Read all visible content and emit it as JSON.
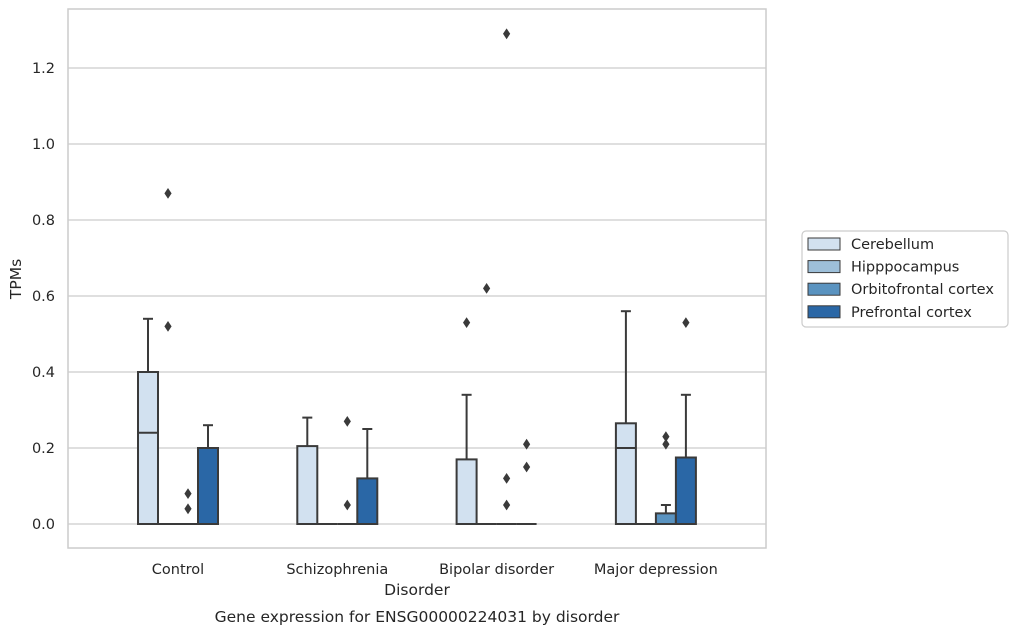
{
  "chart_data": {
    "type": "box",
    "xlabel": "Disorder",
    "ylabel": "TPMs",
    "caption": "Gene expression for ENSG00000224031 by disorder",
    "ylim": [
      -0.065,
      1.36
    ],
    "yticks": [
      0.0,
      0.2,
      0.4,
      0.6,
      0.8,
      1.0,
      1.2
    ],
    "ytick_labels": [
      "0.0",
      "0.2",
      "0.4",
      "0.6",
      "0.8",
      "1.0",
      "1.2"
    ],
    "categories": [
      "Control",
      "Schizophrenia",
      "Bipolar disorder",
      "Major depression"
    ],
    "grid": true,
    "legend_position": "right",
    "series": [
      {
        "name": "Cerebellum",
        "color": "#d2e1f0",
        "boxes": [
          {
            "q1": 0.0,
            "median": 0.24,
            "q3": 0.4,
            "whisker_low": 0.0,
            "whisker_high": 0.54,
            "outliers": []
          },
          {
            "q1": 0.0,
            "median": 0.0,
            "q3": 0.205,
            "whisker_low": 0.0,
            "whisker_high": 0.28,
            "outliers": []
          },
          {
            "q1": 0.0,
            "median": 0.0,
            "q3": 0.17,
            "whisker_low": 0.0,
            "whisker_high": 0.34,
            "outliers": [
              0.53
            ]
          },
          {
            "q1": 0.0,
            "median": 0.2,
            "q3": 0.265,
            "whisker_low": 0.0,
            "whisker_high": 0.56,
            "outliers": []
          }
        ]
      },
      {
        "name": "Hipppocampus",
        "color": "#9dbfd9",
        "boxes": [
          {
            "q1": 0.0,
            "median": 0.0,
            "q3": 0.0,
            "whisker_low": 0.0,
            "whisker_high": 0.0,
            "outliers": [
              0.52,
              0.87
            ]
          },
          {
            "q1": 0.0,
            "median": 0.0,
            "q3": 0.0,
            "whisker_low": 0.0,
            "whisker_high": 0.0,
            "outliers": []
          },
          {
            "q1": 0.0,
            "median": 0.0,
            "q3": 0.0,
            "whisker_low": 0.0,
            "whisker_high": 0.0,
            "outliers": [
              0.62
            ]
          },
          {
            "q1": 0.0,
            "median": 0.0,
            "q3": 0.0,
            "whisker_low": 0.0,
            "whisker_high": 0.0,
            "outliers": []
          }
        ]
      },
      {
        "name": "Orbitofrontal cortex",
        "color": "#5a93c0",
        "boxes": [
          {
            "q1": 0.0,
            "median": 0.0,
            "q3": 0.0,
            "whisker_low": 0.0,
            "whisker_high": 0.0,
            "outliers": [
              0.04,
              0.08
            ]
          },
          {
            "q1": 0.0,
            "median": 0.0,
            "q3": 0.0,
            "whisker_low": 0.0,
            "whisker_high": 0.0,
            "outliers": [
              0.05,
              0.27
            ]
          },
          {
            "q1": 0.0,
            "median": 0.0,
            "q3": 0.0,
            "whisker_low": 0.0,
            "whisker_high": 0.0,
            "outliers": [
              0.05,
              0.12,
              1.29
            ]
          },
          {
            "q1": 0.0,
            "median": 0.0,
            "q3": 0.028,
            "whisker_low": 0.0,
            "whisker_high": 0.05,
            "outliers": [
              0.21,
              0.23
            ]
          }
        ]
      },
      {
        "name": "Prefrontal cortex",
        "color": "#2a67a6",
        "boxes": [
          {
            "q1": 0.0,
            "median": 0.0,
            "q3": 0.2,
            "whisker_low": 0.0,
            "whisker_high": 0.26,
            "outliers": []
          },
          {
            "q1": 0.0,
            "median": 0.0,
            "q3": 0.12,
            "whisker_low": 0.0,
            "whisker_high": 0.25,
            "outliers": []
          },
          {
            "q1": 0.0,
            "median": 0.0,
            "q3": 0.0,
            "whisker_low": 0.0,
            "whisker_high": 0.0,
            "outliers": [
              0.15,
              0.21
            ]
          },
          {
            "q1": 0.0,
            "median": 0.0,
            "q3": 0.175,
            "whisker_low": 0.0,
            "whisker_high": 0.34,
            "outliers": [
              0.53
            ]
          }
        ]
      }
    ],
    "style": {
      "grid_color": "#cccccc",
      "frame_color": "#cccccc",
      "line_color": "#3a3a3a",
      "text_color": "#262626",
      "legend_border": "#cccccc"
    }
  }
}
